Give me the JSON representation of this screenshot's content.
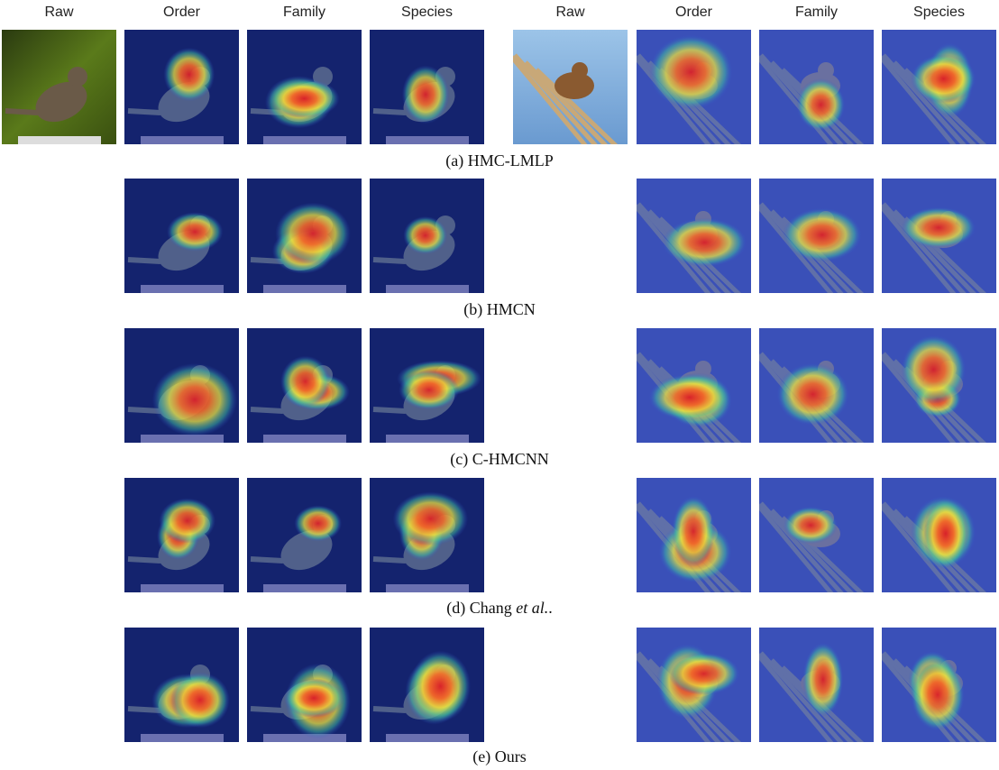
{
  "column_headers": [
    "Raw",
    "Order",
    "Family",
    "Species",
    "Raw",
    "Order",
    "Family",
    "Species"
  ],
  "captions": [
    {
      "text": "(a) HMC-LMLP"
    },
    {
      "text": "(b) HMCN"
    },
    {
      "text": "(c) C-HMCNN"
    },
    {
      "text": "(d) Chang ",
      "italic": "et al.",
      "suffix": "."
    },
    {
      "text": "(e) Ours"
    }
  ]
}
